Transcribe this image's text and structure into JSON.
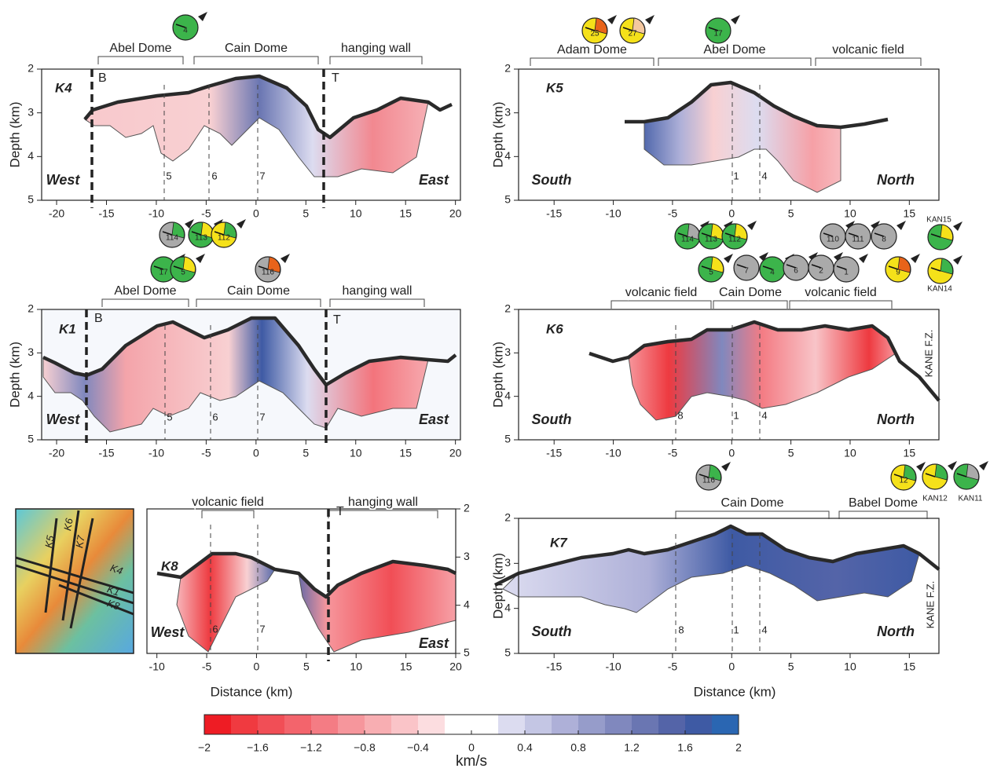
{
  "chart_data": [
    {
      "type": "contour",
      "label": "K4",
      "left_label": "West",
      "right_label": "East",
      "ylabel": "Depth (km)",
      "xlim": [
        -21.5,
        20.5
      ],
      "xticks": [
        -20,
        -15,
        -10,
        -5,
        0,
        5,
        10,
        15,
        20
      ],
      "ylim": [
        5,
        2
      ],
      "yticks": [
        2,
        3,
        4,
        5
      ],
      "regions": [
        "Abel Dome",
        "Cain Dome",
        "hanging wall"
      ],
      "markers": [
        "B",
        "T"
      ],
      "profile_labels": [
        "5",
        "6",
        "7"
      ],
      "beachballs": [
        "4"
      ]
    },
    {
      "type": "contour",
      "label": "K5",
      "left_label": "South",
      "right_label": "North",
      "ylabel": "Depth (km)",
      "xlim": [
        -18,
        17.5
      ],
      "xticks": [
        -15,
        -10,
        -5,
        0,
        5,
        10,
        15
      ],
      "ylim": [
        5,
        2
      ],
      "yticks": [
        2,
        3,
        4,
        5
      ],
      "regions": [
        "Adam Dome",
        "Abel Dome",
        "volcanic field"
      ],
      "profile_labels": [
        "1",
        "4"
      ],
      "beachballs": [
        "25",
        "27",
        "17"
      ]
    },
    {
      "type": "contour",
      "label": "K1",
      "left_label": "West",
      "right_label": "East",
      "ylabel": "Depth (km)",
      "xlim": [
        -21.5,
        20.5
      ],
      "xticks": [
        -20,
        -15,
        -10,
        -5,
        0,
        5,
        10,
        15,
        20
      ],
      "ylim": [
        5,
        2
      ],
      "yticks": [
        2,
        3,
        4,
        5
      ],
      "regions": [
        "Abel Dome",
        "Cain Dome",
        "hanging wall"
      ],
      "markers": [
        "B",
        "T"
      ],
      "profile_labels": [
        "5",
        "6",
        "7"
      ],
      "beachballs": [
        "114",
        "113",
        "112",
        "17",
        "5",
        "116"
      ]
    },
    {
      "type": "contour",
      "label": "K6",
      "left_label": "South",
      "right_label": "North",
      "ylabel": "Depth (km)",
      "side_label": "KANE F.Z.",
      "xlim": [
        -18,
        17.5
      ],
      "xticks": [
        -15,
        -10,
        -5,
        0,
        5,
        10,
        15
      ],
      "ylim": [
        5,
        2
      ],
      "yticks": [
        2,
        3,
        4,
        5
      ],
      "regions": [
        "volcanic field",
        "Cain Dome",
        "volcanic field"
      ],
      "profile_labels": [
        "8",
        "1",
        "4"
      ],
      "beachballs": [
        "114",
        "113",
        "112",
        "5",
        "7",
        "4",
        "6",
        "2",
        "1",
        "110",
        "111",
        "8",
        "9",
        "KAN15",
        "KAN14"
      ]
    },
    {
      "type": "contour",
      "label": "K8",
      "left_label": "West",
      "right_label": "East",
      "xlabel": "Distance (km)",
      "xlim": [
        -11,
        20
      ],
      "xticks": [
        -10,
        -5,
        0,
        5,
        10,
        15,
        20
      ],
      "ylim": [
        5,
        2
      ],
      "yticks": [
        2,
        3,
        4,
        5
      ],
      "regions": [
        "volcanic field",
        "hanging wall"
      ],
      "markers": [
        "T"
      ],
      "profile_labels": [
        "6",
        "7"
      ]
    },
    {
      "type": "contour",
      "label": "K7",
      "left_label": "South",
      "right_label": "North",
      "ylabel": "Depth (km)",
      "xlabel": "Distance (km)",
      "side_label": "KANE F.Z.",
      "xlim": [
        -18,
        17.5
      ],
      "xticks": [
        -15,
        -10,
        -5,
        0,
        5,
        10,
        15
      ],
      "ylim": [
        5,
        2
      ],
      "yticks": [
        2,
        3,
        4,
        5
      ],
      "regions": [
        "Cain Dome",
        "Babel Dome"
      ],
      "profile_labels": [
        "8",
        "1",
        "4"
      ],
      "beachballs": [
        "116",
        "12",
        "KAN12",
        "KAN11"
      ]
    },
    {
      "type": "colorbar",
      "xlabel": "km/s",
      "xlim": [
        -2,
        2
      ],
      "xticks": [
        {
          "value": -2,
          "label": "−2"
        },
        {
          "value": -1.6,
          "label": "−1.6"
        },
        {
          "value": -1.2,
          "label": "−1.2"
        },
        {
          "value": -0.8,
          "label": "−0.8"
        },
        {
          "value": -0.4,
          "label": "−0.4"
        },
        0,
        0.4,
        0.8,
        1.2,
        1.6,
        2
      ],
      "colors": [
        "#ee1c24",
        "#f03a40",
        "#f14e56",
        "#f3646c",
        "#f47c84",
        "#f6969c",
        "#f8aeb2",
        "#fac4c8",
        "#fcdde0",
        "#ffffff",
        "#ffffff",
        "#dcdcf0",
        "#c4c6e4",
        "#aeb0d8",
        "#969cca",
        "#8088be",
        "#6a76b2",
        "#5464a8",
        "#3e5aa4",
        "#2a66b2"
      ]
    }
  ],
  "map": {
    "labels": [
      "K5",
      "K6",
      "K7",
      "K4",
      "K1",
      "K8"
    ]
  }
}
